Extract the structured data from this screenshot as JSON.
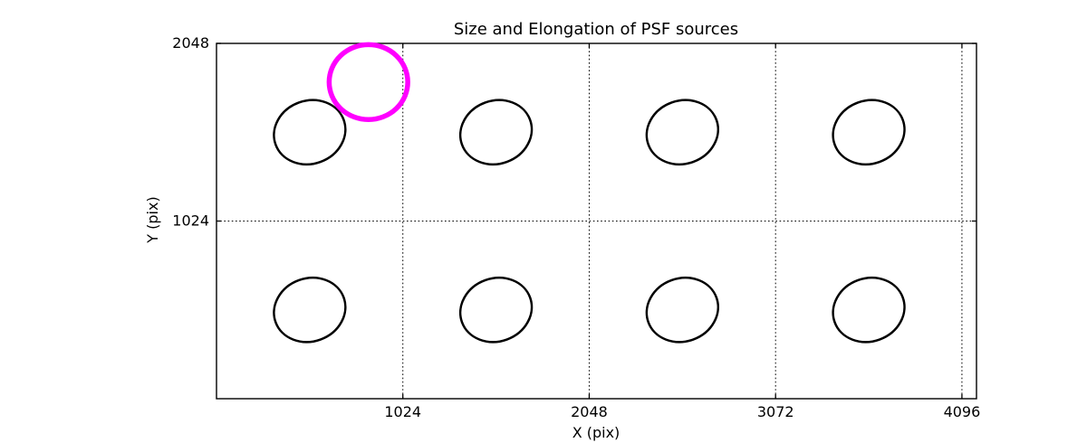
{
  "chart_data": {
    "type": "scatter",
    "title": "Size and Elongation of PSF sources",
    "xlabel": "X (pix)",
    "ylabel": "Y (pix)",
    "xlim": [
      0,
      4176
    ],
    "ylim": [
      0,
      2048
    ],
    "xticks": [
      1024,
      2048,
      3072,
      4096
    ],
    "yticks": [
      1024,
      2048
    ],
    "grid": "dotted",
    "legend_position": "none",
    "sources": [
      {
        "x": 512,
        "y": 1536,
        "a": 199,
        "b": 182,
        "angle": 20
      },
      {
        "x": 1536,
        "y": 1536,
        "a": 199,
        "b": 182,
        "angle": 20
      },
      {
        "x": 2560,
        "y": 1536,
        "a": 199,
        "b": 182,
        "angle": 20
      },
      {
        "x": 3584,
        "y": 1536,
        "a": 199,
        "b": 182,
        "angle": 20
      },
      {
        "x": 512,
        "y": 512,
        "a": 199,
        "b": 182,
        "angle": 20
      },
      {
        "x": 1536,
        "y": 512,
        "a": 199,
        "b": 182,
        "angle": 20
      },
      {
        "x": 2560,
        "y": 512,
        "a": 199,
        "b": 182,
        "angle": 20
      },
      {
        "x": 3584,
        "y": 512,
        "a": 199,
        "b": 182,
        "angle": 20
      }
    ],
    "highlight": {
      "x": 835,
      "y": 1825,
      "r": 216
    },
    "colors": {
      "source": "#000000",
      "highlight": "#ff00ff",
      "axis": "#000000",
      "grid": "#000000",
      "background": "#ffffff"
    }
  }
}
